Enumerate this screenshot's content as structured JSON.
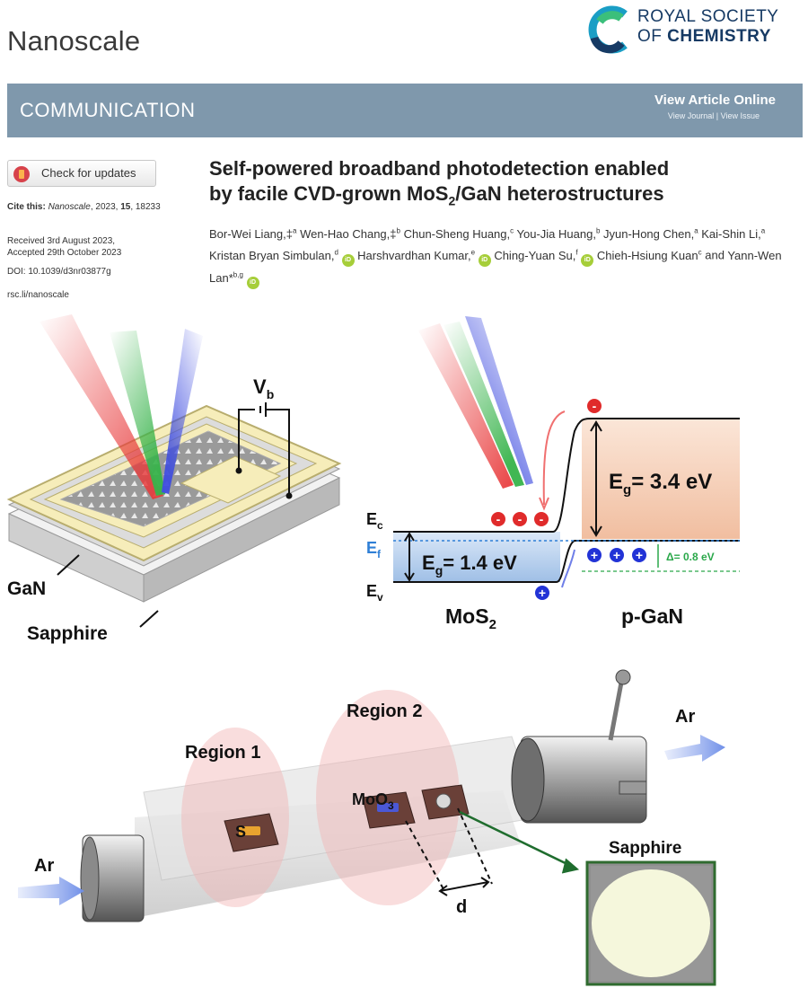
{
  "header": {
    "journal": "Nanoscale",
    "publisher_line1": "ROYAL SOCIETY",
    "publisher_line2_prefix": "OF ",
    "publisher_line2_bold": "CHEMISTRY"
  },
  "banner": {
    "article_type": "COMMUNICATION",
    "view_online": "View Article Online",
    "view_journal": "View Journal",
    "view_issue": "View Issue",
    "separator": "|"
  },
  "sidebar": {
    "check_updates": "Check for updates",
    "cite_label": "Cite this:",
    "cite_journal": "Nanoscale",
    "cite_rest": ", 2023, ",
    "cite_volume": "15",
    "cite_pages": ", 18233",
    "received": "Received 3rd August 2023,",
    "accepted": "Accepted 29th October 2023",
    "doi": "DOI: 10.1039/d3nr03877g",
    "url": "rsc.li/nanoscale"
  },
  "article": {
    "title_line1": "Self-powered broadband photodetection enabled",
    "title_line2_prefix": "by facile CVD-grown MoS",
    "title_line2_sub": "2",
    "title_line2_suffix": "/GaN heterostructures",
    "authors": [
      {
        "name": "Bor-Wei Liang,",
        "mark": "‡",
        "aff": "a",
        "orcid": false
      },
      {
        "name": "Wen-Hao Chang,",
        "mark": "‡",
        "aff": "b",
        "orcid": false
      },
      {
        "name": "Chun-Sheng Huang,",
        "mark": "",
        "aff": "c",
        "orcid": false
      },
      {
        "name": "You-Jia Huang,",
        "mark": "",
        "aff": "b",
        "orcid": false
      },
      {
        "name": "Jyun-Hong Chen,",
        "mark": "",
        "aff": "a",
        "orcid": false
      },
      {
        "name": "Kai-Shin Li,",
        "mark": "",
        "aff": "a",
        "orcid": false
      },
      {
        "name": "Kristan Bryan Simbulan,",
        "mark": "",
        "aff": "d",
        "orcid": true
      },
      {
        "name": "Harshvardhan Kumar,",
        "mark": "",
        "aff": "e",
        "orcid": true
      },
      {
        "name": "Ching-Yuan Su,",
        "mark": "",
        "aff": "f",
        "orcid": true
      },
      {
        "name": "Chieh-Hsiung Kuan",
        "mark": "",
        "aff": "c",
        "orcid": false
      },
      {
        "name": "Yann-Wen Lan",
        "mark": "*",
        "aff": "b,g",
        "orcid": true
      }
    ],
    "and_word": "and",
    "orcid_text": "iD"
  },
  "figure": {
    "device": {
      "vb": "V",
      "vb_sub": "b",
      "gan": "GaN",
      "sapphire": "Sapphire"
    },
    "band": {
      "ec": "E",
      "ec_sub": "c",
      "ef": "E",
      "ef_sub": "f",
      "ev": "E",
      "ev_sub": "v",
      "eg_mos2": "= 1.4 eV",
      "eg_gan": "= 3.4 eV",
      "eg_prefix": "E",
      "eg_sub": "g",
      "delta": "Δ= 0.8 eV",
      "mos2": "MoS",
      "mos2_sub": "2",
      "pgan": "p-GaN",
      "electron": "-",
      "hole": "+"
    },
    "furnace": {
      "region1": "Region 1",
      "region2": "Region 2",
      "ar_in": "Ar",
      "ar_out": "Ar",
      "s": "S",
      "moo3": "MoO",
      "moo3_sub": "3",
      "d": "d",
      "sapphire": "Sapphire"
    },
    "colors": {
      "red_beam": "#e8393a",
      "green_beam": "#37b34a",
      "blue_beam": "#3f4de0",
      "electron": "#e02b2b",
      "hole": "#2233d6",
      "delta": "#2aa84a",
      "fermi": "#2f7fd6"
    }
  }
}
